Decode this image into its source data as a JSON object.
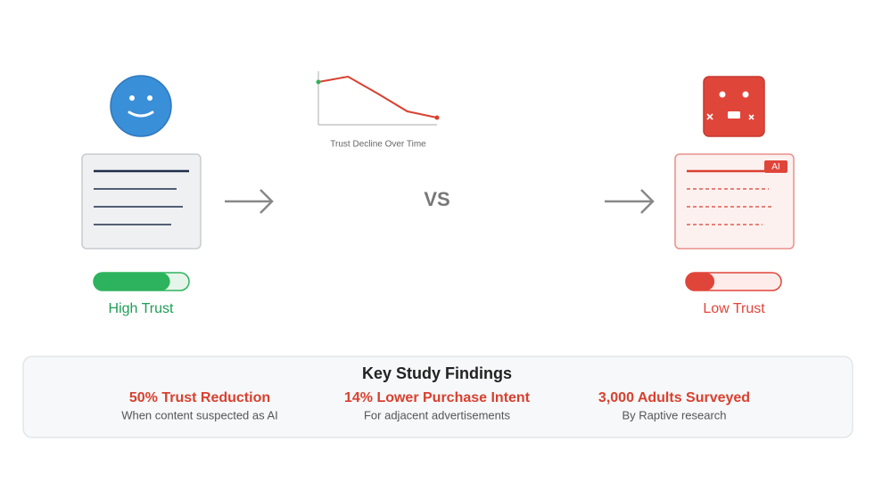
{
  "sparkline": {
    "title": "Trust Decline Over Time",
    "values": [
      48,
      54,
      35,
      15,
      8
    ]
  },
  "vs": "VS",
  "ai_badge": "AI",
  "left": {
    "label": "High Trust",
    "level": 80
  },
  "right": {
    "label": "Low Trust",
    "level": 30
  },
  "findings": {
    "title": "Key Study Findings",
    "items": [
      {
        "title": "50% Trust Reduction",
        "subtitle": "When content suspected as AI"
      },
      {
        "title": "14% Lower Purchase Intent",
        "subtitle": "For adjacent advertisements"
      },
      {
        "title": "3,000 Adults Surveyed",
        "subtitle": "By Raptive research"
      }
    ]
  }
}
